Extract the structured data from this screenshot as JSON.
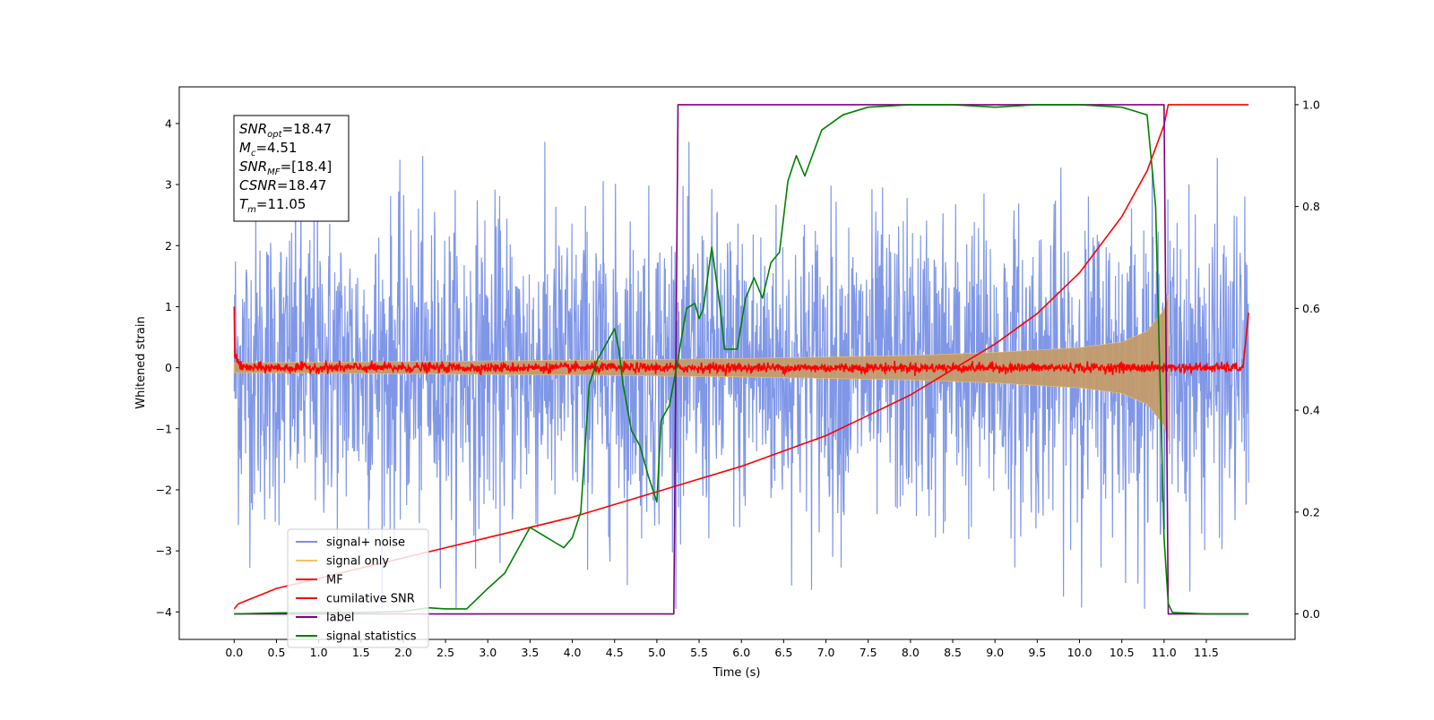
{
  "chart_data": {
    "type": "line",
    "xlabel": "Time (s)",
    "ylabel": "Whitened strain",
    "xlim": [
      -0.65,
      12.55
    ],
    "ylim": [
      -4.45,
      4.6
    ],
    "ylim_right": [
      -0.05,
      1.035
    ],
    "x_ticks": [
      "0.0",
      "0.5",
      "1.0",
      "1.5",
      "2.0",
      "2.5",
      "3.0",
      "3.5",
      "4.0",
      "4.5",
      "5.0",
      "5.5",
      "6.0",
      "6.5",
      "7.0",
      "7.5",
      "8.0",
      "8.5",
      "9.0",
      "9.5",
      "10.0",
      "10.5",
      "11.0",
      "11.5"
    ],
    "y_ticks_left": [
      "4",
      "3",
      "2",
      "1",
      "0",
      "−1",
      "−2",
      "−3",
      "−4"
    ],
    "y_ticks_right": [
      "1.0",
      "0.8",
      "0.6",
      "0.4",
      "0.2",
      "0.0"
    ],
    "grid": false,
    "legend_position": "lower-left",
    "annotations": {
      "snr_opt": {
        "base": "SNR",
        "sub": "opt",
        "value": "=18.47"
      },
      "mc": {
        "base": "M",
        "sub": "c",
        "value": "=4.51"
      },
      "snr_mf": {
        "base": "SNR",
        "sub": "MF",
        "value": "=[18.4]"
      },
      "csnr": {
        "base": "CSNR",
        "sub": "",
        "value": "=18.47"
      },
      "tm": {
        "base": "T",
        "sub": "m",
        "value": "=11.05"
      }
    },
    "series": [
      {
        "name": "signal+ noise",
        "color": "#7991e6",
        "axis": "left",
        "description": "noise band, amplitude about ±2.4 with peaks to ±3.6"
      },
      {
        "name": "signal only",
        "color": "#f5c26b",
        "axis": "left",
        "envelope": {
          "x": [
            0.0,
            2.0,
            4.0,
            6.0,
            8.0,
            9.0,
            10.0,
            10.5,
            10.8,
            11.0,
            11.05
          ],
          "amp": [
            0.08,
            0.1,
            0.12,
            0.15,
            0.2,
            0.25,
            0.33,
            0.42,
            0.6,
            0.95,
            1.2
          ]
        }
      },
      {
        "name": "MF",
        "color": "#ff0000",
        "axis": "left",
        "description": "near zero, ±0.12, spikes to 1.0 at 0.0 and 0.9 at 12.0"
      },
      {
        "name": "cumilative SNR",
        "color": "#ff0000",
        "axis": "right",
        "x": [
          0.0,
          0.05,
          0.5,
          1.0,
          2.0,
          3.0,
          4.0,
          5.0,
          6.0,
          7.0,
          7.5,
          8.0,
          8.5,
          9.0,
          9.5,
          10.0,
          10.5,
          10.8,
          11.0,
          11.05,
          12.0
        ],
        "y": [
          0.01,
          0.02,
          0.05,
          0.07,
          0.11,
          0.15,
          0.19,
          0.24,
          0.29,
          0.35,
          0.39,
          0.43,
          0.48,
          0.53,
          0.59,
          0.67,
          0.78,
          0.87,
          0.96,
          1.0,
          1.0
        ]
      },
      {
        "name": "label",
        "color": "#800080",
        "axis": "right",
        "x": [
          0.0,
          5.2,
          5.25,
          11.0,
          11.05,
          12.0
        ],
        "y": [
          0.0,
          0.0,
          1.0,
          1.0,
          0.0,
          0.0
        ]
      },
      {
        "name": "signal statistics",
        "color": "#008000",
        "axis": "right",
        "x": [
          0.0,
          0.5,
          1.0,
          1.5,
          2.0,
          2.3,
          2.5,
          2.75,
          3.0,
          3.2,
          3.5,
          3.7,
          3.8,
          3.9,
          4.0,
          4.1,
          4.2,
          4.3,
          4.4,
          4.5,
          4.55,
          4.6,
          4.7,
          4.8,
          4.9,
          5.0,
          5.05,
          5.15,
          5.25,
          5.35,
          5.45,
          5.5,
          5.55,
          5.65,
          5.75,
          5.8,
          5.95,
          6.05,
          6.15,
          6.25,
          6.35,
          6.45,
          6.55,
          6.65,
          6.75,
          6.95,
          7.2,
          7.5,
          8.0,
          8.5,
          9.0,
          9.5,
          10.0,
          10.5,
          10.8,
          10.9,
          11.0,
          11.05,
          11.1,
          11.5,
          12.0
        ],
        "y": [
          0.0,
          0.002,
          0.003,
          0.003,
          0.005,
          0.012,
          0.01,
          0.01,
          0.05,
          0.08,
          0.17,
          0.15,
          0.14,
          0.13,
          0.15,
          0.2,
          0.45,
          0.5,
          0.53,
          0.56,
          0.52,
          0.45,
          0.36,
          0.33,
          0.27,
          0.22,
          0.38,
          0.41,
          0.5,
          0.6,
          0.61,
          0.58,
          0.6,
          0.72,
          0.6,
          0.52,
          0.52,
          0.62,
          0.66,
          0.62,
          0.69,
          0.71,
          0.85,
          0.9,
          0.86,
          0.95,
          0.98,
          0.995,
          1.0,
          1.0,
          0.995,
          1.0,
          1.0,
          0.995,
          0.98,
          0.8,
          0.15,
          0.02,
          0.003,
          0.0,
          0.0
        ]
      }
    ]
  }
}
